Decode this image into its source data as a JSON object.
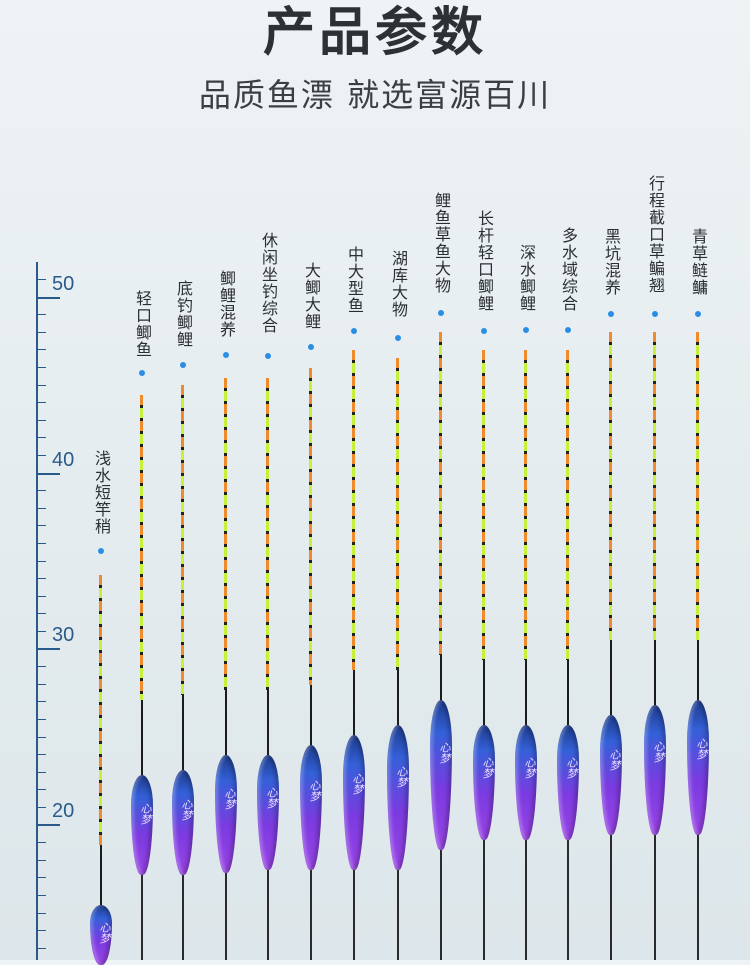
{
  "header": {
    "title": "产品参数",
    "subtitle": "品质鱼漂 就选富源百川"
  },
  "ruler": {
    "labels": [
      "50",
      "40",
      "30",
      "20"
    ]
  },
  "brand_mark": "心梦",
  "floats": [
    {
      "label": "浅水短竿稍"
    },
    {
      "label": "轻口鲫鱼"
    },
    {
      "label": "底钓鲫鲤"
    },
    {
      "label": "鲫鲤混养"
    },
    {
      "label": "休闲坐钓综合"
    },
    {
      "label": "大鲫大鲤"
    },
    {
      "label": "中大型鱼"
    },
    {
      "label": "湖库大物"
    },
    {
      "label": "鲤鱼草鱼大物"
    },
    {
      "label": "长杆轻口鲫鲤"
    },
    {
      "label": "深水鲫鲤"
    },
    {
      "label": "多水域综合"
    },
    {
      "label": "黑坑混养"
    },
    {
      "label": "行程截口草鳊翘"
    },
    {
      "label": "青草鲢鳙"
    }
  ],
  "colors": {
    "ruler": "#2a5a8a",
    "dot": "#2b8ee6",
    "body_top": "#3460d8",
    "body_bottom": "#9a44e6",
    "tip_orange": "#f08a2a",
    "tip_green": "#c7f03a"
  }
}
